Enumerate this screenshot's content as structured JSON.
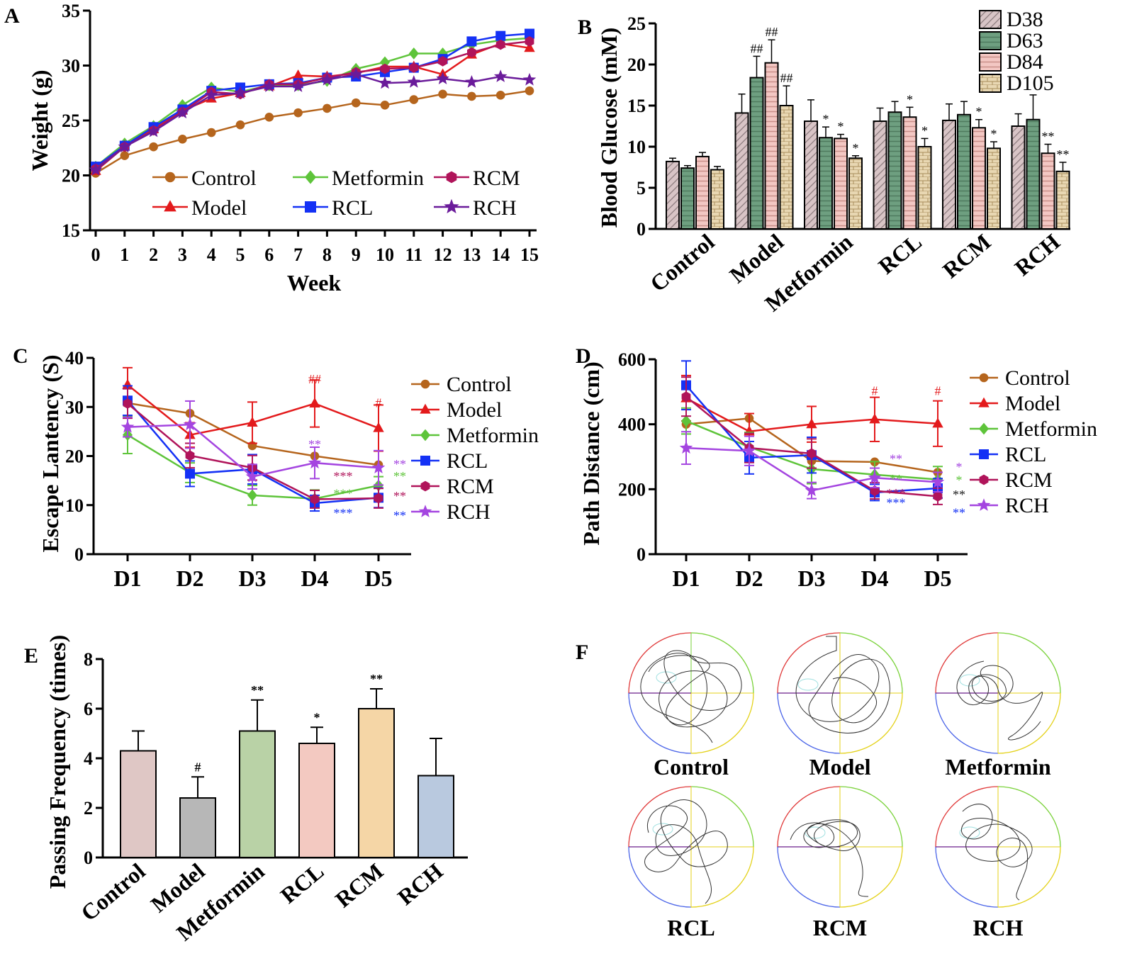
{
  "figure": {
    "panel_letters": [
      "A",
      "B",
      "C",
      "D",
      "E",
      "F"
    ]
  },
  "chart_data": [
    {
      "panel": "A",
      "type": "line",
      "xlabel": "Week",
      "ylabel": "Weight (g)",
      "ylim": [
        15,
        35
      ],
      "yticks": [
        "15",
        "20",
        "25",
        "30",
        "35"
      ],
      "x": [
        "0",
        "1",
        "2",
        "3",
        "4",
        "5",
        "6",
        "7",
        "8",
        "9",
        "10",
        "11",
        "12",
        "13",
        "14",
        "15"
      ],
      "series": [
        {
          "name": "Control",
          "color": "#b5651d",
          "marker": "circle",
          "values": [
            20.2,
            21.8,
            22.6,
            23.3,
            23.9,
            24.6,
            25.3,
            25.7,
            26.1,
            26.6,
            26.4,
            26.9,
            27.4,
            27.2,
            27.3,
            27.7
          ]
        },
        {
          "name": "Model",
          "color": "#e31a1c",
          "marker": "triangle",
          "values": [
            20.4,
            22.6,
            24.2,
            25.9,
            27.0,
            27.5,
            28.1,
            29.1,
            29.0,
            29.3,
            29.9,
            29.9,
            29.2,
            31.0,
            32.0,
            31.6
          ]
        },
        {
          "name": "Metformin",
          "color": "#5ec43a",
          "marker": "diamond",
          "values": [
            20.8,
            22.9,
            24.5,
            26.4,
            28.0,
            27.6,
            28.2,
            28.2,
            28.6,
            29.7,
            30.3,
            31.1,
            31.1,
            31.9,
            32.3,
            32.5
          ]
        },
        {
          "name": "RCL",
          "color": "#1431f5",
          "marker": "square",
          "values": [
            20.8,
            22.7,
            24.4,
            26.0,
            27.7,
            28.0,
            28.3,
            28.4,
            28.9,
            29.0,
            29.4,
            29.8,
            30.6,
            32.2,
            32.7,
            32.9
          ]
        },
        {
          "name": "RCM",
          "color": "#b0145a",
          "marker": "hexagon",
          "values": [
            20.6,
            22.6,
            24.1,
            25.8,
            27.6,
            27.4,
            28.3,
            28.3,
            28.9,
            29.4,
            29.7,
            29.8,
            30.4,
            31.2,
            31.9,
            32.2
          ]
        },
        {
          "name": "RCH",
          "color": "#6a1b9a",
          "marker": "star",
          "values": [
            20.5,
            22.6,
            24.0,
            25.7,
            27.3,
            27.5,
            28.1,
            28.1,
            28.7,
            29.2,
            28.4,
            28.5,
            28.8,
            28.5,
            29.0,
            28.7
          ]
        }
      ]
    },
    {
      "panel": "B",
      "type": "bar",
      "ylabel": "Blood Glucose (mM)",
      "ylim": [
        0,
        25
      ],
      "yticks": [
        "0",
        "5",
        "10",
        "15",
        "20",
        "25"
      ],
      "categories": [
        "Control",
        "Model",
        "Metformin",
        "RCL",
        "RCM",
        "RCH"
      ],
      "series": [
        {
          "name": "D38",
          "color": "#d8c4c6",
          "pattern": "diag",
          "values": [
            8.2,
            14.1,
            13.1,
            13.1,
            13.2,
            12.5
          ],
          "errors": [
            0.4,
            2.3,
            2.6,
            1.6,
            2.0,
            1.5
          ]
        },
        {
          "name": "D63",
          "color": "#6e9f80",
          "pattern": "hlines",
          "values": [
            7.4,
            18.4,
            11.1,
            14.2,
            13.9,
            13.3
          ],
          "errors": [
            0.3,
            2.6,
            1.3,
            1.3,
            1.6,
            3.0
          ]
        },
        {
          "name": "D84",
          "color": "#f3c7c3",
          "pattern": "hlines",
          "values": [
            8.8,
            20.2,
            11.0,
            13.6,
            12.3,
            9.2
          ],
          "errors": [
            0.5,
            2.8,
            0.5,
            1.2,
            1.0,
            1.1
          ]
        },
        {
          "name": "D105",
          "color": "#e8d7b2",
          "pattern": "brick",
          "values": [
            7.2,
            15.0,
            8.6,
            10.0,
            9.8,
            7.0
          ],
          "errors": [
            0.4,
            2.4,
            0.3,
            1.0,
            0.8,
            1.1
          ]
        }
      ],
      "annotations": [
        {
          "cat": 1,
          "ser": 1,
          "text": "##"
        },
        {
          "cat": 1,
          "ser": 2,
          "text": "##"
        },
        {
          "cat": 1,
          "ser": 3,
          "text": "##"
        },
        {
          "cat": 2,
          "ser": 1,
          "text": "*"
        },
        {
          "cat": 2,
          "ser": 2,
          "text": "*"
        },
        {
          "cat": 2,
          "ser": 3,
          "text": "*"
        },
        {
          "cat": 3,
          "ser": 2,
          "text": "*"
        },
        {
          "cat": 3,
          "ser": 3,
          "text": "*"
        },
        {
          "cat": 4,
          "ser": 2,
          "text": "*"
        },
        {
          "cat": 4,
          "ser": 3,
          "text": "*"
        },
        {
          "cat": 5,
          "ser": 2,
          "text": "**"
        },
        {
          "cat": 5,
          "ser": 3,
          "text": "**"
        }
      ]
    },
    {
      "panel": "C",
      "type": "line",
      "ylabel": "Escape Lantency (S)",
      "ylim": [
        0,
        40
      ],
      "yticks": [
        "0",
        "10",
        "20",
        "30",
        "40"
      ],
      "x": [
        "D1",
        "D2",
        "D3",
        "D4",
        "D5"
      ],
      "series": [
        {
          "name": "Control",
          "color": "#b5651d",
          "marker": "circle",
          "values": [
            30.8,
            28.7,
            22.1,
            20.0,
            18.2
          ],
          "errors": [
            0,
            0,
            0,
            0,
            0
          ]
        },
        {
          "name": "Model",
          "color": "#e31a1c",
          "marker": "triangle",
          "values": [
            34.5,
            24.3,
            26.8,
            30.7,
            25.7
          ],
          "errors": [
            3.5,
            2.5,
            4.2,
            4.8,
            4.7
          ]
        },
        {
          "name": "Metformin",
          "color": "#5ec43a",
          "marker": "diamond",
          "values": [
            24.3,
            16.6,
            12.0,
            11.3,
            14.0
          ],
          "errors": [
            3.8,
            2.0,
            2.0,
            1.8,
            1.8
          ]
        },
        {
          "name": "RCL",
          "color": "#1431f5",
          "marker": "square",
          "values": [
            31.3,
            16.4,
            17.3,
            10.4,
            11.5
          ],
          "errors": [
            3.0,
            2.6,
            3.0,
            1.6,
            2.0
          ]
        },
        {
          "name": "RCM",
          "color": "#b0145a",
          "marker": "hexagon",
          "values": [
            30.7,
            20.1,
            17.6,
            11.2,
            11.4
          ],
          "errors": [
            3.0,
            2.5,
            2.5,
            1.8,
            2.0
          ]
        },
        {
          "name": "RCH",
          "color": "#a445e0",
          "marker": "star",
          "values": [
            25.9,
            26.4,
            15.8,
            18.6,
            17.6
          ],
          "errors": [
            2.0,
            4.8,
            2.5,
            3.2,
            3.5
          ]
        }
      ],
      "annotations": [
        {
          "x": 3,
          "y": 34.8,
          "text": "##",
          "color": "#e31a1c"
        },
        {
          "x": 4,
          "y": 30.0,
          "text": "#",
          "color": "#e31a1c"
        },
        {
          "x": 3,
          "y": 21.5,
          "text": "**",
          "color": "#a445e0"
        },
        {
          "x": 3,
          "y": 15.0,
          "text": "***",
          "color": "#b0145a",
          "dx": 40
        },
        {
          "x": 3,
          "y": 11.5,
          "text": "***",
          "color": "#5ec43a",
          "dx": 40
        },
        {
          "x": 3,
          "y": 7.5,
          "text": "***",
          "color": "#1431f5",
          "dx": 40
        },
        {
          "x": 4,
          "y": 17.5,
          "text": "**",
          "color": "#a445e0",
          "dx": 30
        },
        {
          "x": 4,
          "y": 15.0,
          "text": "**",
          "color": "#5ec43a",
          "dx": 30
        },
        {
          "x": 4,
          "y": 11.0,
          "text": "**",
          "color": "#b0145a",
          "dx": 30
        },
        {
          "x": 4,
          "y": 7.0,
          "text": "**",
          "color": "#1431f5",
          "dx": 30
        }
      ]
    },
    {
      "panel": "D",
      "type": "line",
      "ylabel": "Path Distance (cm)",
      "ylim": [
        0,
        600
      ],
      "yticks": [
        "0",
        "200",
        "400",
        "600"
      ],
      "x": [
        "D1",
        "D2",
        "D3",
        "D4",
        "D5"
      ],
      "series": [
        {
          "name": "Control",
          "color": "#b5651d",
          "marker": "circle",
          "values": [
            400,
            418,
            287,
            284,
            252
          ],
          "errors": [
            0,
            0,
            0,
            0,
            0
          ]
        },
        {
          "name": "Model",
          "color": "#e31a1c",
          "marker": "triangle",
          "values": [
            480,
            378,
            400,
            415,
            402
          ],
          "errors": [
            70,
            55,
            55,
            68,
            70
          ]
        },
        {
          "name": "Metformin",
          "color": "#5ec43a",
          "marker": "diamond",
          "values": [
            410,
            330,
            262,
            245,
            230
          ],
          "errors": [
            40,
            45,
            45,
            40,
            40
          ]
        },
        {
          "name": "RCL",
          "color": "#1431f5",
          "marker": "square",
          "values": [
            520,
            297,
            305,
            190,
            203
          ],
          "errors": [
            75,
            50,
            55,
            25,
            30
          ]
        },
        {
          "name": "RCM",
          "color": "#b0145a",
          "marker": "hexagon",
          "values": [
            485,
            327,
            310,
            195,
            178
          ],
          "errors": [
            60,
            45,
            45,
            25,
            25
          ]
        },
        {
          "name": "RCH",
          "color": "#a445e0",
          "marker": "star",
          "values": [
            327,
            318,
            196,
            235,
            222
          ],
          "errors": [
            50,
            45,
            25,
            30,
            30
          ]
        }
      ],
      "annotations": [
        {
          "x": 3,
          "y": 490,
          "text": "#",
          "color": "#e31a1c"
        },
        {
          "x": 4,
          "y": 490,
          "text": "#",
          "color": "#e31a1c"
        },
        {
          "x": 3,
          "y": 280,
          "text": "**",
          "color": "#a445e0",
          "dx": 30
        },
        {
          "x": 3,
          "y": 218,
          "text": "**",
          "color": "#5ec43a",
          "dx": 30
        },
        {
          "x": 3,
          "y": 175,
          "text": "***",
          "color": "#b0145a",
          "dx": 30
        },
        {
          "x": 3,
          "y": 145,
          "text": "***",
          "color": "#1431f5",
          "dx": 30
        },
        {
          "x": 4,
          "y": 255,
          "text": "*",
          "color": "#a445e0",
          "dx": 30
        },
        {
          "x": 4,
          "y": 215,
          "text": "*",
          "color": "#5ec43a",
          "dx": 30
        },
        {
          "x": 4,
          "y": 170,
          "text": "**",
          "color": "#222222",
          "dx": 30
        },
        {
          "x": 4,
          "y": 115,
          "text": "**",
          "color": "#1431f5",
          "dx": 30
        }
      ]
    },
    {
      "panel": "E",
      "type": "bar",
      "ylabel": "Passing Frequency (times)",
      "ylim": [
        0,
        8
      ],
      "yticks": [
        "0",
        "2",
        "4",
        "6",
        "8"
      ],
      "categories": [
        "Control",
        "Model",
        "Metformin",
        "RCL",
        "RCM",
        "RCH"
      ],
      "values": [
        4.3,
        2.4,
        5.1,
        4.6,
        6.0,
        3.3
      ],
      "errors": [
        0.8,
        0.85,
        1.25,
        0.65,
        0.8,
        1.5
      ],
      "colors": [
        "#dfc7c5",
        "#b7b7b7",
        "#b9d2a6",
        "#f3c9c1",
        "#f5d6a6",
        "#b9c9df"
      ],
      "annotations": [
        "",
        "#",
        "**",
        "*",
        "**",
        ""
      ]
    }
  ],
  "panel_f": {
    "labels": [
      "Control",
      "Model",
      "Metformin",
      "RCL",
      "RCM",
      "RCH"
    ]
  }
}
